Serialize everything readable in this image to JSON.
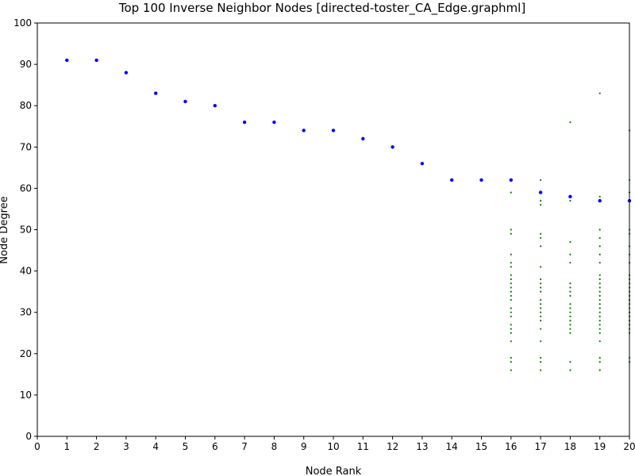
{
  "chart_data": {
    "type": "scatter",
    "title": "Top 100  Inverse Neighbor Nodes [directed-toster_CA_Edge.graphml]",
    "xlabel": "Node Rank",
    "ylabel": "Node Degree",
    "xlim": [
      0,
      20
    ],
    "ylim": [
      0,
      100
    ],
    "xticks": [
      0,
      1,
      2,
      3,
      4,
      5,
      6,
      7,
      8,
      9,
      10,
      11,
      12,
      13,
      14,
      15,
      16,
      17,
      18,
      19,
      20
    ],
    "yticks": [
      0,
      10,
      20,
      30,
      40,
      50,
      60,
      70,
      80,
      90,
      100
    ],
    "grid": false,
    "colors": {
      "primary": "#0000ff",
      "secondary": "#008000"
    },
    "series": [
      {
        "color": "#0000ff",
        "x": [
          1,
          2,
          3,
          4,
          5,
          6,
          7,
          8,
          9,
          10,
          11,
          12,
          13,
          14,
          15,
          16,
          17,
          18,
          19,
          20
        ],
        "y": [
          91,
          91,
          88,
          83,
          81,
          80,
          76,
          76,
          74,
          74,
          72,
          70,
          66,
          62,
          62,
          62,
          59,
          58,
          57,
          57
        ]
      },
      {
        "color": "#008000",
        "points": [
          [
            16,
            59
          ],
          [
            16,
            50
          ],
          [
            16,
            49
          ],
          [
            16,
            44
          ],
          [
            16,
            42
          ],
          [
            16,
            41
          ],
          [
            16,
            39
          ],
          [
            16,
            38
          ],
          [
            16,
            37
          ],
          [
            16,
            36
          ],
          [
            16,
            35
          ],
          [
            16,
            34
          ],
          [
            16,
            33
          ],
          [
            16,
            31
          ],
          [
            16,
            30
          ],
          [
            16,
            29
          ],
          [
            16,
            27
          ],
          [
            16,
            26
          ],
          [
            16,
            25
          ],
          [
            16,
            23
          ],
          [
            16,
            19
          ],
          [
            16,
            18
          ],
          [
            16,
            16
          ],
          [
            17,
            62
          ],
          [
            17,
            57
          ],
          [
            17,
            56
          ],
          [
            17,
            49
          ],
          [
            17,
            48
          ],
          [
            17,
            46
          ],
          [
            17,
            41
          ],
          [
            17,
            38
          ],
          [
            17,
            37
          ],
          [
            17,
            36
          ],
          [
            17,
            35
          ],
          [
            17,
            33
          ],
          [
            17,
            32
          ],
          [
            17,
            31
          ],
          [
            17,
            30
          ],
          [
            17,
            29
          ],
          [
            17,
            28
          ],
          [
            17,
            26
          ],
          [
            17,
            23
          ],
          [
            17,
            19
          ],
          [
            17,
            18
          ],
          [
            17,
            16
          ],
          [
            18,
            76
          ],
          [
            18,
            57
          ],
          [
            18,
            47
          ],
          [
            18,
            44
          ],
          [
            18,
            42
          ],
          [
            18,
            37
          ],
          [
            18,
            36
          ],
          [
            18,
            35
          ],
          [
            18,
            34
          ],
          [
            18,
            32
          ],
          [
            18,
            31
          ],
          [
            18,
            30
          ],
          [
            18,
            29
          ],
          [
            18,
            28
          ],
          [
            18,
            27
          ],
          [
            18,
            26
          ],
          [
            18,
            25
          ],
          [
            18,
            18
          ],
          [
            18,
            16
          ],
          [
            19,
            83
          ],
          [
            19,
            58
          ],
          [
            19,
            50
          ],
          [
            19,
            48
          ],
          [
            19,
            46
          ],
          [
            19,
            44
          ],
          [
            19,
            42
          ],
          [
            19,
            39
          ],
          [
            19,
            38
          ],
          [
            19,
            37
          ],
          [
            19,
            36
          ],
          [
            19,
            35
          ],
          [
            19,
            34
          ],
          [
            19,
            33
          ],
          [
            19,
            32
          ],
          [
            19,
            31
          ],
          [
            19,
            30
          ],
          [
            19,
            29
          ],
          [
            19,
            28
          ],
          [
            19,
            27
          ],
          [
            19,
            26
          ],
          [
            19,
            25
          ],
          [
            19,
            23
          ],
          [
            19,
            19
          ],
          [
            19,
            18
          ],
          [
            19,
            16
          ],
          [
            20,
            74
          ],
          [
            20,
            62
          ],
          [
            20,
            59
          ],
          [
            20,
            50
          ],
          [
            20,
            49
          ],
          [
            20,
            46
          ],
          [
            20,
            44
          ],
          [
            20,
            42
          ],
          [
            20,
            39
          ],
          [
            20,
            38
          ],
          [
            20,
            37
          ],
          [
            20,
            36
          ],
          [
            20,
            35
          ],
          [
            20,
            34
          ],
          [
            20,
            33
          ],
          [
            20,
            32
          ],
          [
            20,
            31
          ],
          [
            20,
            30
          ],
          [
            20,
            29
          ],
          [
            20,
            28
          ],
          [
            20,
            27
          ],
          [
            20,
            26
          ],
          [
            20,
            25
          ],
          [
            20,
            19
          ],
          [
            20,
            18
          ]
        ]
      }
    ]
  }
}
